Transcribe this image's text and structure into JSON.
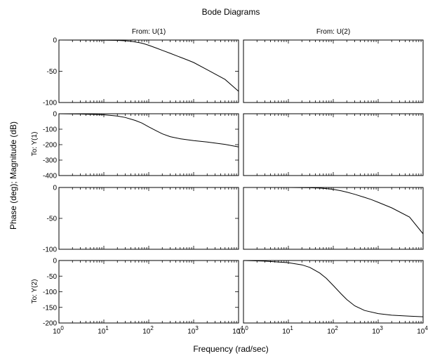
{
  "chart_data": {
    "type": "line",
    "title": "Bode Diagrams",
    "xlabel": "Frequency (rad/sec)",
    "ylabel": "Phase (deg); Magnitude (dB)",
    "x_scale": "log",
    "xlim": [
      1,
      10000
    ],
    "x_tick_labels": [
      {
        "base": "10",
        "exp": "0"
      },
      {
        "base": "10",
        "exp": "1"
      },
      {
        "base": "10",
        "exp": "2"
      },
      {
        "base": "10",
        "exp": "3"
      },
      {
        "base": "10",
        "exp": "4"
      }
    ],
    "column_headers": [
      "From: U(1)",
      "From: U(2)"
    ],
    "row_headers": [
      "To: Y(1)",
      "To: Y(2)"
    ],
    "grid": false,
    "panels": [
      {
        "row": 0,
        "col": 0,
        "quantity": "magnitude",
        "ylim": [
          -100,
          0
        ],
        "y_ticks": [
          {
            "v": 0,
            "t": "0"
          },
          {
            "v": -50,
            "t": "-50"
          },
          {
            "v": -100,
            "t": "-100"
          }
        ],
        "series": [
          {
            "x": [
              1,
              10,
              20,
              30,
              40,
              50,
              60,
              70,
              80,
              100,
              150,
              200,
              300,
              500,
              700,
              1000,
              2000,
              5000,
              10000
            ],
            "y": [
              0,
              -0.2,
              -0.6,
              -1.2,
              -2,
              -3,
              -4,
              -5,
              -6.2,
              -8.4,
              -13,
              -16.5,
              -21.2,
              -27.4,
              -31.5,
              -36,
              -47.5,
              -63,
              -82
            ]
          }
        ]
      },
      {
        "row": 0,
        "col": 1,
        "quantity": "magnitude",
        "ylim": [
          -100,
          0
        ],
        "y_ticks": [],
        "series": []
      },
      {
        "row": 1,
        "col": 0,
        "quantity": "phase",
        "ylim": [
          -400,
          0
        ],
        "y_ticks": [
          {
            "v": 0,
            "t": "0"
          },
          {
            "v": -100,
            "t": "-100"
          },
          {
            "v": -200,
            "t": "-200"
          },
          {
            "v": -300,
            "t": "-300"
          },
          {
            "v": -400,
            "t": "-400"
          }
        ],
        "series": [
          {
            "x": [
              1,
              3,
              10,
              20,
              30,
              50,
              70,
              100,
              150,
              200,
              300,
              500,
              1000,
              2000,
              3000,
              5000,
              10000
            ],
            "y": [
              0,
              -2,
              -7,
              -15,
              -24,
              -43,
              -60,
              -85,
              -112,
              -130,
              -148,
              -162,
              -174,
              -183,
              -190,
              -198,
              -215
            ]
          }
        ]
      },
      {
        "row": 1,
        "col": 1,
        "quantity": "phase",
        "ylim": [
          -400,
          0
        ],
        "y_ticks": [],
        "series": []
      },
      {
        "row": 2,
        "col": 0,
        "quantity": "magnitude",
        "ylim": [
          -100,
          0
        ],
        "y_ticks": [
          {
            "v": 0,
            "t": "0"
          },
          {
            "v": -50,
            "t": "-50"
          },
          {
            "v": -100,
            "t": "-100"
          }
        ],
        "series": []
      },
      {
        "row": 2,
        "col": 1,
        "quantity": "magnitude",
        "ylim": [
          -100,
          0
        ],
        "y_ticks": [],
        "series": [
          {
            "x": [
              1,
              10,
              30,
              50,
              70,
              100,
              150,
              200,
              300,
              500,
              700,
              1000,
              2000,
              5000,
              10000
            ],
            "y": [
              0,
              0,
              -0.4,
              -1,
              -1.8,
              -3,
              -5.4,
              -7.5,
              -11,
              -16,
              -19.5,
              -24,
              -33,
              -48,
              -75
            ]
          }
        ]
      },
      {
        "row": 3,
        "col": 0,
        "quantity": "phase",
        "ylim": [
          -200,
          0
        ],
        "y_ticks": [
          {
            "v": 0,
            "t": "0"
          },
          {
            "v": -50,
            "t": "-50"
          },
          {
            "v": -100,
            "t": "-100"
          },
          {
            "v": -150,
            "t": "-150"
          },
          {
            "v": -200,
            "t": "-200"
          }
        ],
        "series": []
      },
      {
        "row": 3,
        "col": 1,
        "quantity": "phase",
        "ylim": [
          -200,
          0
        ],
        "y_ticks": [],
        "series": [
          {
            "x": [
              1,
              3,
              10,
              20,
              30,
              50,
              70,
              100,
              150,
              200,
              300,
              500,
              1000,
              2000,
              5000,
              10000
            ],
            "y": [
              0,
              -2,
              -7,
              -14,
              -22,
              -40,
              -57,
              -80,
              -107,
              -125,
              -145,
              -160,
              -170,
              -175,
              -178,
              -180
            ]
          }
        ]
      }
    ]
  }
}
